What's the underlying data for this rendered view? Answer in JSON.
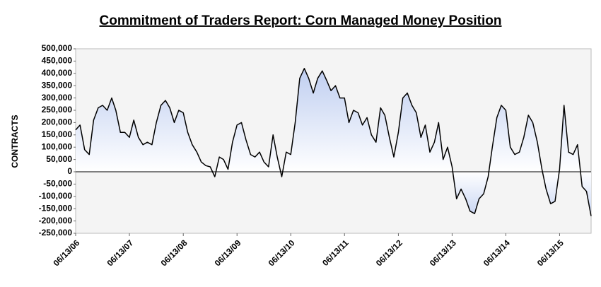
{
  "chart_data": {
    "type": "area",
    "title": "Commitment of Traders Report:  Corn Managed Money Position",
    "y_label": "CONTRACTS",
    "line_color": "#000000",
    "fill_color": "#b3c5ee",
    "x": [
      "2006-06-13",
      "2006-07-13",
      "2006-08-13",
      "2006-09-13",
      "2006-10-13",
      "2006-11-13",
      "2006-12-13",
      "2007-01-13",
      "2007-02-13",
      "2007-03-13",
      "2007-04-13",
      "2007-05-13",
      "2007-06-13",
      "2007-07-13",
      "2007-08-13",
      "2007-09-13",
      "2007-10-13",
      "2007-11-13",
      "2007-12-13",
      "2008-01-13",
      "2008-02-13",
      "2008-03-13",
      "2008-04-13",
      "2008-05-13",
      "2008-06-13",
      "2008-07-13",
      "2008-08-13",
      "2008-09-13",
      "2008-10-13",
      "2008-11-13",
      "2008-12-13",
      "2009-01-13",
      "2009-02-13",
      "2009-03-13",
      "2009-04-13",
      "2009-05-13",
      "2009-06-13",
      "2009-07-13",
      "2009-08-13",
      "2009-09-13",
      "2009-10-13",
      "2009-11-13",
      "2009-12-13",
      "2010-01-13",
      "2010-02-13",
      "2010-03-13",
      "2010-04-13",
      "2010-05-13",
      "2010-06-13",
      "2010-07-13",
      "2010-08-13",
      "2010-09-13",
      "2010-10-13",
      "2010-11-13",
      "2010-12-13",
      "2011-01-13",
      "2011-02-13",
      "2011-03-13",
      "2011-04-13",
      "2011-05-13",
      "2011-06-13",
      "2011-07-13",
      "2011-08-13",
      "2011-09-13",
      "2011-10-13",
      "2011-11-13",
      "2011-12-13",
      "2012-01-13",
      "2012-02-13",
      "2012-03-13",
      "2012-04-13",
      "2012-05-13",
      "2012-06-13",
      "2012-07-13",
      "2012-08-13",
      "2012-09-13",
      "2012-10-13",
      "2012-11-13",
      "2012-12-13",
      "2013-01-13",
      "2013-02-13",
      "2013-03-13",
      "2013-04-13",
      "2013-05-13",
      "2013-06-13",
      "2013-07-13",
      "2013-08-13",
      "2013-09-13",
      "2013-10-13",
      "2013-11-13",
      "2013-12-13",
      "2014-01-13",
      "2014-02-13",
      "2014-03-13",
      "2014-04-13",
      "2014-05-13",
      "2014-06-13",
      "2014-07-13",
      "2014-08-13",
      "2014-09-13",
      "2014-10-13",
      "2014-11-13",
      "2014-12-13",
      "2015-01-13",
      "2015-02-13",
      "2015-03-13",
      "2015-04-13",
      "2015-05-13",
      "2015-06-13",
      "2015-07-13",
      "2015-08-13",
      "2015-09-13",
      "2015-10-13",
      "2015-11-13",
      "2015-12-13",
      "2016-01-13"
    ],
    "values": [
      170000,
      190000,
      90000,
      70000,
      210000,
      260000,
      270000,
      250000,
      300000,
      250000,
      160000,
      160000,
      140000,
      210000,
      140000,
      110000,
      120000,
      110000,
      200000,
      270000,
      290000,
      260000,
      200000,
      250000,
      240000,
      160000,
      110000,
      80000,
      40000,
      25000,
      20000,
      -20000,
      60000,
      50000,
      10000,
      120000,
      190000,
      200000,
      130000,
      70000,
      60000,
      80000,
      40000,
      20000,
      150000,
      60000,
      -20000,
      80000,
      70000,
      200000,
      380000,
      420000,
      380000,
      320000,
      380000,
      410000,
      370000,
      330000,
      350000,
      300000,
      300000,
      200000,
      250000,
      240000,
      190000,
      220000,
      150000,
      120000,
      260000,
      230000,
      140000,
      60000,
      160000,
      300000,
      320000,
      270000,
      240000,
      140000,
      190000,
      80000,
      120000,
      200000,
      50000,
      100000,
      20000,
      -110000,
      -70000,
      -110000,
      -160000,
      -170000,
      -110000,
      -90000,
      -20000,
      100000,
      220000,
      270000,
      250000,
      100000,
      70000,
      80000,
      140000,
      230000,
      200000,
      120000,
      10000,
      -70000,
      -130000,
      -120000,
      10000,
      270000,
      80000,
      70000,
      110000,
      -60000,
      -80000,
      -180000
    ],
    "xlim": [
      "2006-06-13",
      "2016-01-13"
    ],
    "xticks": [
      {
        "value": "2006-06-13",
        "label": "06/13/06"
      },
      {
        "value": "2007-06-13",
        "label": "06/13/07"
      },
      {
        "value": "2008-06-13",
        "label": "06/13/08"
      },
      {
        "value": "2009-06-13",
        "label": "06/13/09"
      },
      {
        "value": "2010-06-13",
        "label": "06/13/10"
      },
      {
        "value": "2011-06-13",
        "label": "06/13/11"
      },
      {
        "value": "2012-06-13",
        "label": "06/13/12"
      },
      {
        "value": "2013-06-13",
        "label": "06/13/13"
      },
      {
        "value": "2014-06-13",
        "label": "06/13/14"
      },
      {
        "value": "2015-06-13",
        "label": "06/13/15"
      }
    ],
    "ylim": [
      -250000,
      500000
    ],
    "yticks": [
      {
        "value": -250000,
        "label": "-250,000"
      },
      {
        "value": -200000,
        "label": "-200,000"
      },
      {
        "value": -150000,
        "label": "-150,000"
      },
      {
        "value": -100000,
        "label": "-100,000"
      },
      {
        "value": -50000,
        "label": "-50,000"
      },
      0,
      {
        "value": 50000,
        "label": "50,000"
      },
      {
        "value": 100000,
        "label": "100,000"
      },
      {
        "value": 150000,
        "label": "150,000"
      },
      {
        "value": 200000,
        "label": "200,000"
      },
      {
        "value": 250000,
        "label": "250,000"
      },
      {
        "value": 300000,
        "label": "300,000"
      },
      {
        "value": 350000,
        "label": "350,000"
      },
      {
        "value": 400000,
        "label": "400,000"
      },
      {
        "value": 450000,
        "label": "450,000"
      },
      {
        "value": 500000,
        "label": "500,000"
      }
    ],
    "grid": false
  }
}
